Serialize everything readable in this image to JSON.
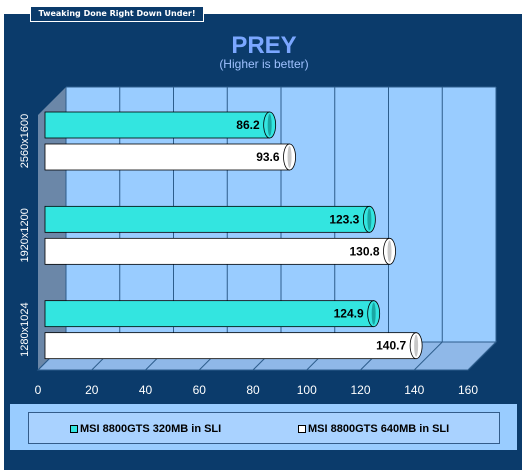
{
  "banner": "Tweaking Done Right Down Under!",
  "colors": {
    "frame": "#0b3b6b",
    "plot_back": "#99ccff",
    "side_wall": "#6b87a8",
    "series_1": "#33e5e0",
    "series_2": "#ffffff",
    "title": "#7ba7ff"
  },
  "chart_data": {
    "type": "bar",
    "orientation": "horizontal",
    "title": "PREY",
    "subtitle": "(Higher is better)",
    "categories": [
      "2560x1600",
      "1920x1200",
      "1280x1024"
    ],
    "series": [
      {
        "name": "MSI 8800GTS 320MB in SLI",
        "values": [
          86.2,
          123.3,
          124.9
        ]
      },
      {
        "name": "MSI 8800GTS 640MB in SLI",
        "values": [
          93.6,
          130.8,
          140.7
        ]
      }
    ],
    "x_ticks": [
      "0",
      "20",
      "40",
      "60",
      "80",
      "100",
      "120",
      "140",
      "160"
    ],
    "xlim": [
      0,
      160
    ],
    "grid": true,
    "legend_position": "bottom"
  }
}
